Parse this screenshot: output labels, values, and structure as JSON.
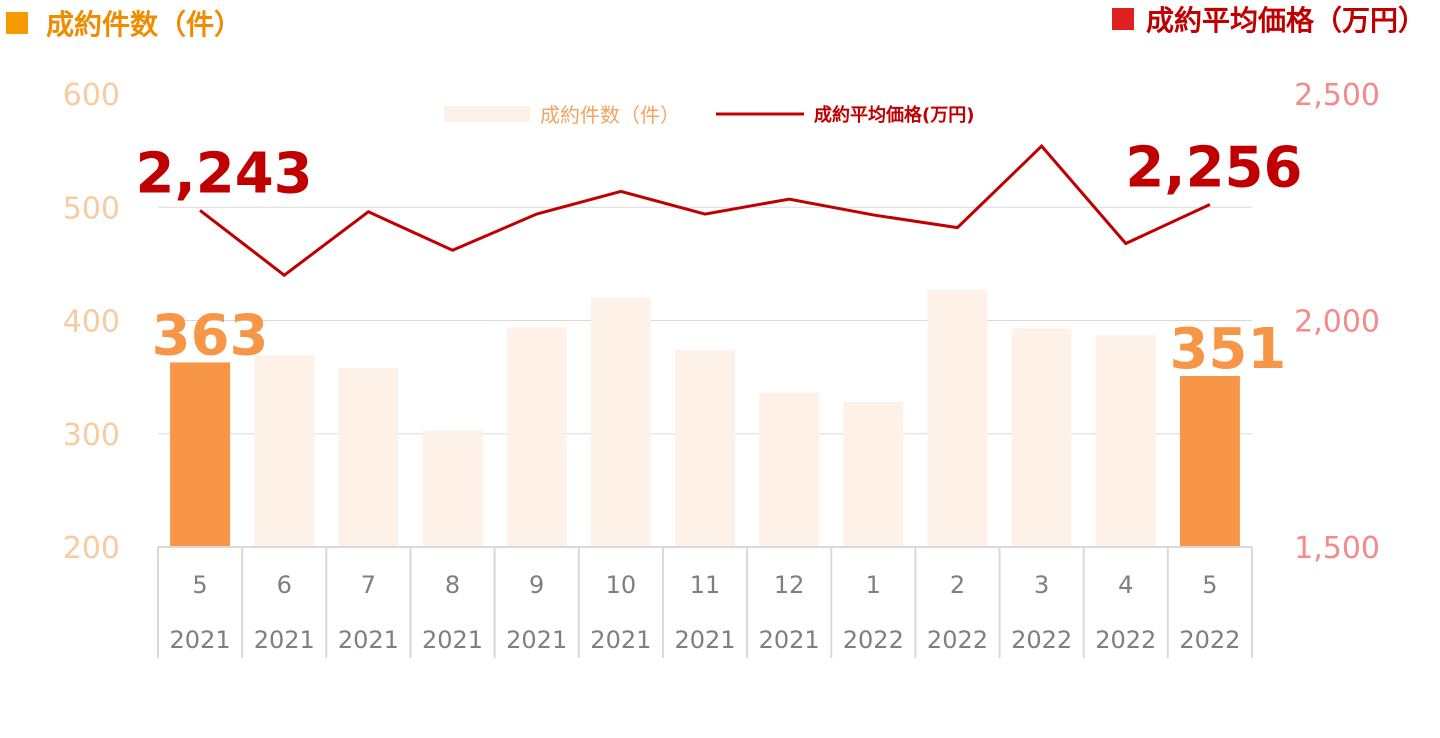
{
  "chart_data": {
    "type": "bar+line",
    "title_left": "成約件数（件）",
    "title_right": "成約平均価格（万円）",
    "categories": [
      {
        "month": "5",
        "year": "2021"
      },
      {
        "month": "6",
        "year": "2021"
      },
      {
        "month": "7",
        "year": "2021"
      },
      {
        "month": "8",
        "year": "2021"
      },
      {
        "month": "9",
        "year": "2021"
      },
      {
        "month": "10",
        "year": "2021"
      },
      {
        "month": "11",
        "year": "2021"
      },
      {
        "month": "12",
        "year": "2021"
      },
      {
        "month": "1",
        "year": "2022"
      },
      {
        "month": "2",
        "year": "2022"
      },
      {
        "month": "3",
        "year": "2022"
      },
      {
        "month": "4",
        "year": "2022"
      },
      {
        "month": "5",
        "year": "2022"
      }
    ],
    "series": [
      {
        "name": "成約件数（件）",
        "type": "bar",
        "axis": "left",
        "values": [
          363,
          369,
          358,
          303,
          394,
          420,
          374,
          336,
          328,
          427,
          393,
          387,
          351
        ],
        "color": "#fdf1e8",
        "highlight_color": "#f79646",
        "highlight_indices": [
          0,
          12
        ],
        "labels": {
          "0": "363",
          "12": "351"
        }
      },
      {
        "name": "成約平均価格(万円)",
        "type": "line",
        "axis": "right",
        "values": [
          2243,
          2100,
          2240,
          2155,
          2235,
          2285,
          2235,
          2268,
          2233,
          2205,
          2385,
          2170,
          2256
        ],
        "color": "#c00000",
        "labels": {
          "0": "2,243",
          "12": "2,256"
        }
      }
    ],
    "y_left": {
      "min": 200,
      "max": 600,
      "ticks": [
        "200",
        "300",
        "400",
        "500",
        "600"
      ]
    },
    "y_right": {
      "min": 1500,
      "max": 2500,
      "ticks": [
        "1,500",
        "2,000",
        "2,500"
      ]
    },
    "grid": true,
    "legend_placement": "top-center",
    "colors": {
      "title_left_marker": "#f59a00",
      "title_right_marker": "#e02020"
    }
  }
}
